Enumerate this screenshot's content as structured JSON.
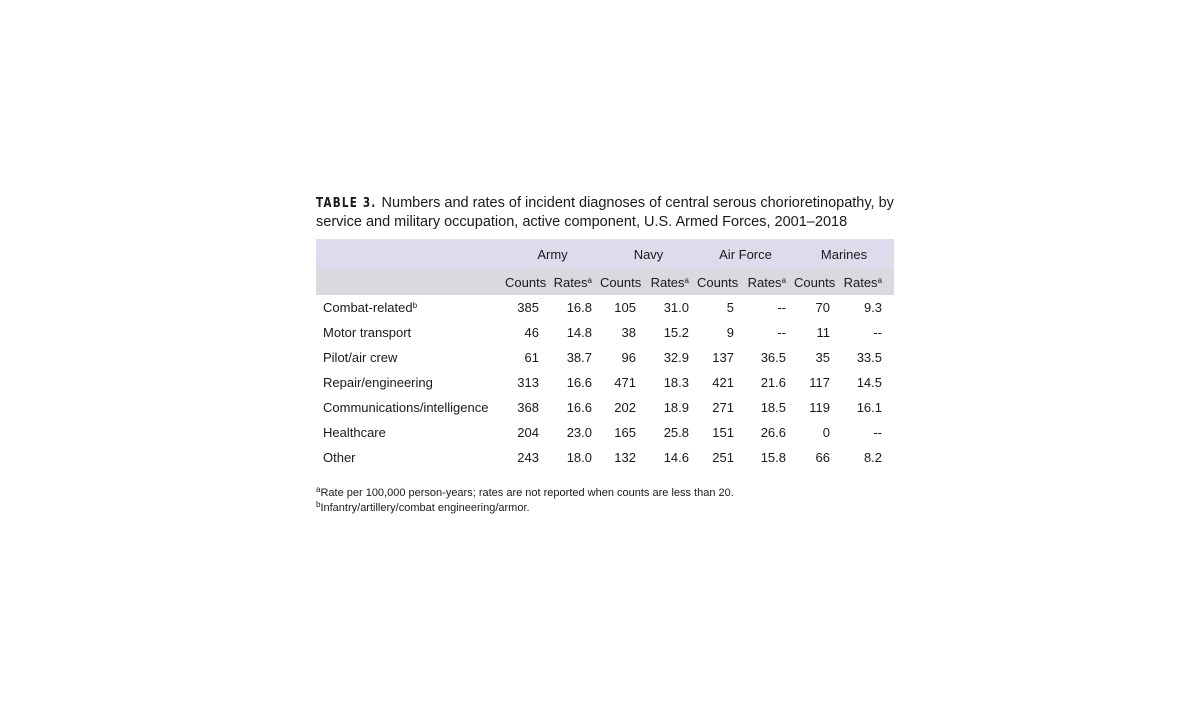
{
  "title": {
    "label": "TABLE 3.",
    "text": "Numbers and rates of incident diagnoses of central serous chorioretinopathy, by service and military occupation, active component, U.S. Armed Forces, 2001–2018"
  },
  "table": {
    "services": [
      "Army",
      "Navy",
      "Air Force",
      "Marines"
    ],
    "subheaders": {
      "counts": "Counts",
      "rates": "Rates",
      "rates_sup": "a"
    },
    "rows": [
      {
        "label": "Combat-related",
        "sup": "b",
        "values": [
          "385",
          "16.8",
          "105",
          "31.0",
          "5",
          "--",
          "70",
          "9.3"
        ]
      },
      {
        "label": "Motor transport",
        "sup": "",
        "values": [
          "46",
          "14.8",
          "38",
          "15.2",
          "9",
          "--",
          "11",
          "--"
        ]
      },
      {
        "label": "Pilot/air crew",
        "sup": "",
        "values": [
          "61",
          "38.7",
          "96",
          "32.9",
          "137",
          "36.5",
          "35",
          "33.5"
        ]
      },
      {
        "label": "Repair/engineering",
        "sup": "",
        "values": [
          "313",
          "16.6",
          "471",
          "18.3",
          "421",
          "21.6",
          "117",
          "14.5"
        ]
      },
      {
        "label": "Communications/intelligence",
        "sup": "",
        "values": [
          "368",
          "16.6",
          "202",
          "18.9",
          "271",
          "18.5",
          "119",
          "16.1"
        ]
      },
      {
        "label": "Healthcare",
        "sup": "",
        "values": [
          "204",
          "23.0",
          "165",
          "25.8",
          "151",
          "26.6",
          "0",
          "--"
        ]
      },
      {
        "label": "Other",
        "sup": "",
        "values": [
          "243",
          "18.0",
          "132",
          "14.6",
          "251",
          "15.8",
          "66",
          "8.2"
        ]
      }
    ]
  },
  "footnotes": [
    {
      "mark": "a",
      "text": "Rate per 100,000 person-years; rates are not reported when counts are less than 20."
    },
    {
      "mark": "b",
      "text": "Infantry/artillery/combat engineering/armor."
    }
  ],
  "colors": {
    "header_top": "#dddcec",
    "header_sub": "#dbd9df"
  }
}
